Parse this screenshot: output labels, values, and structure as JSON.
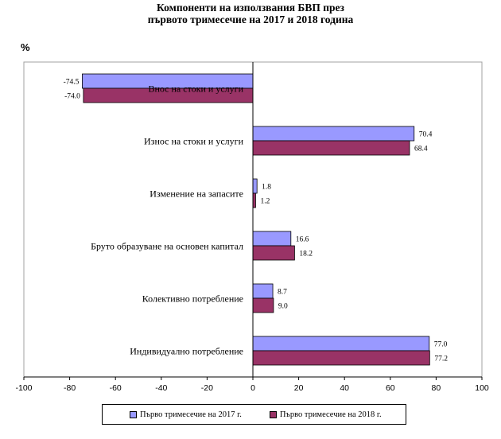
{
  "chart_data": {
    "type": "bar",
    "orientation": "horizontal",
    "title": [
      "Компоненти на използвания БВП през",
      "първото тримесечие на 2017 и 2018 година"
    ],
    "ylabel": "%",
    "categories": [
      "Внос на стоки и услуги",
      "Износ на стоки и услуги",
      "Изменение  на запасите",
      "Бруто образуване на основен капитал",
      "Колективно  потребление",
      "Индивидуално  потребление"
    ],
    "series": [
      {
        "name": "Първо тримесечие на 2017 г.",
        "values": [
          -74.5,
          70.4,
          1.8,
          16.6,
          8.7,
          77.0
        ],
        "color": "#9999ff"
      },
      {
        "name": "Първо тримесечие на 2018 г.",
        "values": [
          -74.0,
          68.4,
          1.2,
          18.2,
          9.0,
          77.2
        ],
        "color": "#993366"
      }
    ],
    "value_labels": [
      [
        "-74.5",
        "70.4",
        "1.8",
        "16.6",
        "8.7",
        "77.0"
      ],
      [
        "-74.0",
        "68.4",
        "1.2",
        "18.2",
        "9.0",
        "77.2"
      ]
    ],
    "xlim": [
      -100,
      100
    ],
    "xticks": [
      "-100",
      "-80",
      "-60",
      "-40",
      "-20",
      "0",
      "20",
      "40",
      "60",
      "80",
      "100"
    ],
    "grid": false,
    "legend_position": "bottom"
  }
}
